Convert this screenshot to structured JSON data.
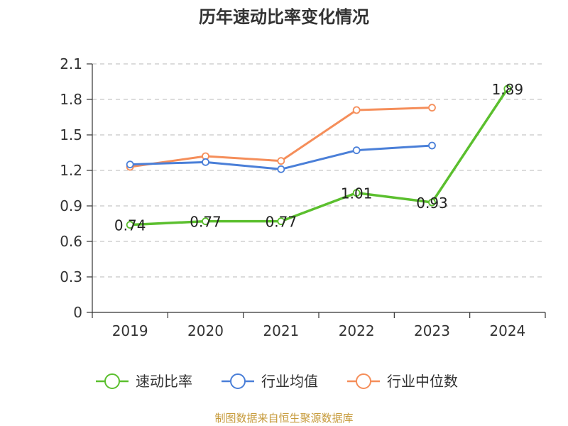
{
  "chart_data": {
    "type": "line",
    "title": "历年速动比率变化情况",
    "categories": [
      "2019",
      "2020",
      "2021",
      "2022",
      "2023",
      "2024"
    ],
    "ylim": [
      0,
      2.1
    ],
    "yticks": [
      "0",
      "0.3",
      "0.6",
      "0.9",
      "1.2",
      "1.5",
      "1.8",
      "2.1"
    ],
    "grid": true,
    "legend_position": "bottom",
    "series": [
      {
        "name": "速动比率",
        "color": "#5bbf2e",
        "values": [
          0.74,
          0.77,
          0.77,
          1.01,
          0.93,
          1.89
        ],
        "labels": [
          "0.74",
          "0.77",
          "0.77",
          "1.01",
          "0.93",
          "1.89"
        ]
      },
      {
        "name": "行业均值",
        "color": "#4a7fd8",
        "values": [
          1.25,
          1.27,
          1.21,
          1.37,
          1.41,
          null
        ]
      },
      {
        "name": "行业中位数",
        "color": "#f58e5a",
        "values": [
          1.23,
          1.32,
          1.28,
          1.71,
          1.73,
          null
        ]
      }
    ]
  },
  "source": "制图数据来自恒生聚源数据库"
}
